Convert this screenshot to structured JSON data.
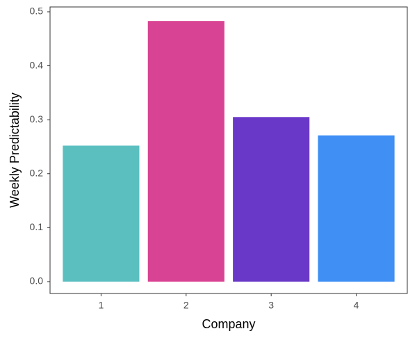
{
  "chart_data": {
    "type": "bar",
    "x_label": "Company",
    "y_label": "Weekly Predictability",
    "categories": [
      "1",
      "2",
      "3",
      "4"
    ],
    "values": [
      0.252,
      0.483,
      0.305,
      0.271
    ],
    "colors": [
      "#5bbfc0",
      "#d94393",
      "#6a38c8",
      "#3f8ff5"
    ],
    "ylim": [
      -0.022,
      0.509
    ],
    "yticks": [
      {
        "value": 0,
        "label": "0.0"
      },
      0.1,
      0.2,
      0.3,
      0.4,
      0.5
    ],
    "grid": false
  }
}
